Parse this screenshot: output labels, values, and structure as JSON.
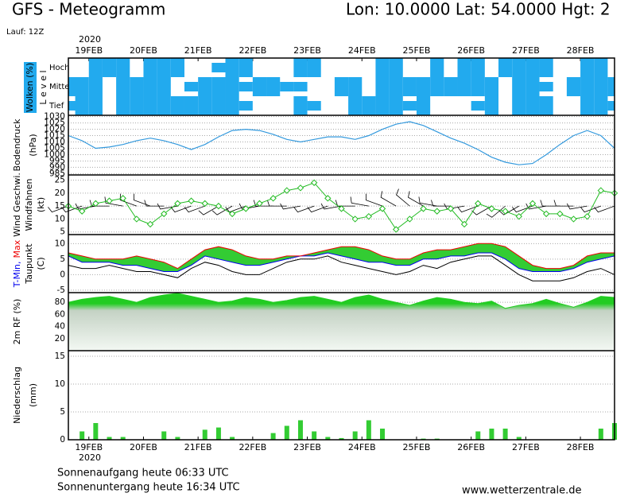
{
  "header": {
    "title": "GFS - Meteogramm",
    "location": "Lon: 10.0000 Lat: 54.0000 Hgt: 2",
    "run": "Lauf: 12Z"
  },
  "footer": {
    "sunrise": "Sonnenaufgang heute 06:33 UTC",
    "sunset": "Sonnenuntergang heute 16:34 UTC",
    "source": "www.wetterzentrale.de"
  },
  "time_axis": {
    "year": "2020",
    "xlim": [
      0,
      240
    ],
    "xticks": [
      {
        "value": 9,
        "label": "19FEB"
      },
      {
        "value": 33,
        "label": "20FEB"
      },
      {
        "value": 57,
        "label": "21FEB"
      },
      {
        "value": 81,
        "label": "22FEB"
      },
      {
        "value": 105,
        "label": "23FEB"
      },
      {
        "value": 129,
        "label": "24FEB"
      },
      {
        "value": 153,
        "label": "25FEB"
      },
      {
        "value": 177,
        "label": "26FEB"
      },
      {
        "value": 201,
        "label": "27FEB"
      },
      {
        "value": 225,
        "label": "28FEB"
      }
    ],
    "x": [
      0,
      6,
      12,
      18,
      24,
      30,
      36,
      42,
      48,
      54,
      60,
      66,
      72,
      78,
      84,
      90,
      96,
      102,
      108,
      114,
      120,
      126,
      132,
      138,
      144,
      150,
      156,
      162,
      168,
      174,
      180,
      186,
      192,
      198,
      204,
      210,
      216,
      222,
      228,
      234,
      240
    ]
  },
  "chart_data": [
    {
      "type": "heatmap",
      "label": "Wolken (%)",
      "level_axis": "L e v e l",
      "color": "#22aaee",
      "series": [
        {
          "name": "Hoch",
          "values": [
            0,
            0,
            100,
            100,
            100,
            0,
            100,
            100,
            100,
            0,
            0,
            50,
            100,
            100,
            0,
            0,
            0,
            100,
            100,
            0,
            0,
            0,
            0,
            100,
            100,
            0,
            0,
            100,
            0,
            100,
            100,
            0,
            100,
            100,
            100,
            100,
            0,
            0,
            100,
            100,
            0
          ]
        },
        {
          "name": "Mittel",
          "values": [
            100,
            100,
            100,
            0,
            100,
            100,
            100,
            100,
            0,
            50,
            100,
            100,
            100,
            50,
            100,
            100,
            50,
            50,
            0,
            0,
            100,
            100,
            0,
            100,
            100,
            100,
            100,
            100,
            100,
            100,
            100,
            100,
            0,
            100,
            100,
            50,
            0,
            100,
            100,
            100,
            100
          ]
        },
        {
          "name": "Tief",
          "values": [
            50,
            100,
            100,
            0,
            100,
            100,
            100,
            100,
            100,
            100,
            100,
            100,
            100,
            50,
            0,
            0,
            0,
            100,
            50,
            0,
            0,
            100,
            100,
            100,
            100,
            50,
            100,
            0,
            0,
            0,
            50,
            100,
            0,
            100,
            100,
            100,
            0,
            0,
            100,
            100,
            50
          ]
        }
      ]
    },
    {
      "type": "line",
      "ylabel": [
        "Bodendruck",
        "(hPa)"
      ],
      "color": "#3399dd",
      "values": [
        1015,
        1011,
        1005,
        1006,
        1008,
        1011,
        1013,
        1011,
        1008,
        1004,
        1008,
        1014,
        1019,
        1020,
        1019,
        1016,
        1012,
        1010,
        1012,
        1014,
        1014,
        1012,
        1015,
        1020,
        1024,
        1026,
        1023,
        1018,
        1013,
        1009,
        1004,
        998,
        994,
        992,
        993,
        1000,
        1008,
        1015,
        1019,
        1015,
        1005
      ],
      "ylim": [
        984,
        1031
      ],
      "yticks": [
        985,
        990,
        995,
        1000,
        1005,
        1010,
        1015,
        1020,
        1025,
        1030
      ],
      "grid": true
    },
    {
      "type": "wind",
      "ylabel": [
        "(kt)"
      ],
      "series": [
        {
          "name": "Wind Geschwi.",
          "color": "#22bb22",
          "values": [
            15,
            13,
            16,
            17,
            18,
            10,
            8,
            12,
            16,
            17,
            16,
            15,
            12,
            14,
            16,
            18,
            21,
            22,
            24,
            18,
            14,
            10,
            11,
            14,
            6,
            10,
            14,
            13,
            14,
            8,
            16,
            14,
            13,
            11,
            16,
            12,
            12,
            10,
            11,
            21,
            20
          ]
        }
      ],
      "barbs": {
        "name": "Windfahnen",
        "color": "#000000",
        "values": [
          250,
          250,
          260,
          270,
          280,
          290,
          290,
          270,
          260,
          250,
          250,
          240,
          240,
          250,
          260,
          270,
          270,
          260,
          250,
          250,
          260,
          270,
          280,
          290,
          300,
          310,
          300,
          280,
          270,
          260,
          250,
          240,
          230,
          240,
          250,
          260,
          270,
          270,
          260,
          250,
          250
        ]
      },
      "ylim": [
        4,
        27
      ],
      "yticks": [
        5,
        10,
        15,
        20,
        25
      ],
      "grid": true
    },
    {
      "type": "temperature",
      "ylabel": [
        "(C)"
      ],
      "fill": "#33cc33",
      "series": [
        {
          "name": "T-Min,",
          "color": "#0000ee",
          "values": [
            6,
            4,
            4,
            4,
            3,
            3,
            2,
            1,
            1,
            3,
            6,
            5,
            4,
            3,
            3,
            4,
            5,
            6,
            6,
            7,
            6,
            5,
            4,
            4,
            3,
            3,
            5,
            5,
            6,
            6,
            7,
            7,
            5,
            2,
            1,
            1,
            1,
            2,
            4,
            5,
            6
          ]
        },
        {
          "name": "Max",
          "color": "#ee0000",
          "values": [
            7,
            6,
            5,
            5,
            5,
            6,
            5,
            4,
            2,
            5,
            8,
            9,
            8,
            6,
            5,
            5,
            6,
            6,
            7,
            8,
            9,
            9,
            8,
            6,
            5,
            5,
            7,
            8,
            8,
            9,
            10,
            10,
            9,
            6,
            3,
            2,
            2,
            3,
            6,
            7,
            7
          ]
        },
        {
          "name": "Taupunkt",
          "color": "#000000",
          "values": [
            3,
            2,
            2,
            3,
            2,
            1,
            1,
            0,
            -1,
            2,
            4,
            3,
            1,
            0,
            0,
            2,
            4,
            5,
            5,
            6,
            4,
            3,
            2,
            1,
            0,
            1,
            3,
            2,
            4,
            5,
            6,
            6,
            3,
            0,
            -2,
            -2,
            -2,
            -1,
            1,
            2,
            0
          ]
        }
      ],
      "ylim": [
        -5.8,
        12.9
      ],
      "yticks": [
        -5,
        0,
        5,
        10
      ],
      "grid": true
    },
    {
      "type": "area",
      "ylabel": [
        "2m RF (%)"
      ],
      "label_color": "#22bb22",
      "color": "#22cc22",
      "values": [
        80,
        85,
        88,
        90,
        85,
        80,
        88,
        92,
        95,
        90,
        85,
        80,
        82,
        88,
        85,
        80,
        83,
        88,
        90,
        85,
        80,
        88,
        92,
        85,
        80,
        75,
        82,
        88,
        85,
        80,
        78,
        82,
        70,
        75,
        78,
        85,
        78,
        72,
        80,
        90,
        88
      ],
      "ylim": [
        0,
        96
      ],
      "yticks": [
        20,
        40,
        60,
        80
      ],
      "grid": true
    },
    {
      "type": "bar",
      "ylabel": [
        "Niederschlag",
        "(mm)"
      ],
      "color": "#33cc33",
      "values": [
        0,
        1.5,
        3,
        0.5,
        0.5,
        0,
        0,
        1.5,
        0.5,
        0,
        1.8,
        2.2,
        0.5,
        0,
        0,
        1.2,
        2.5,
        3.5,
        1.5,
        0.5,
        0.3,
        1.5,
        3.5,
        2,
        0,
        0,
        0.2,
        0.2,
        0,
        0,
        1.5,
        2,
        2,
        0.5,
        0,
        0,
        0,
        0,
        0,
        2,
        3
      ],
      "ylim": [
        0,
        16
      ],
      "yticks": [
        0,
        5,
        10,
        15
      ],
      "grid": true
    }
  ]
}
